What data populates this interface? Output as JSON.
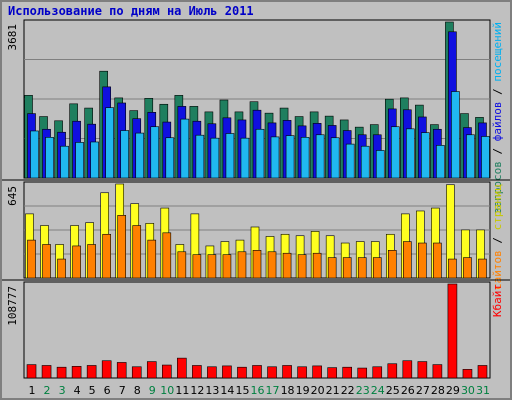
{
  "title": "Использование по дням на Июль 2011",
  "colors": {
    "hits": "#1f7f5f",
    "files": "#1010e0",
    "sites": "#ff8000",
    "pages": "#ffff20",
    "visits_label": "#00b0f0",
    "visits_bar": "#20b8f0",
    "kbytes": "#ff0000",
    "weekend_tick": "#008040",
    "weekday_tick": "#000000",
    "separator": "#000000"
  },
  "chart_data": [
    {
      "type": "bar",
      "panel": "top",
      "y_max_label": "3681",
      "ylim": [
        0,
        3681
      ],
      "grid": true,
      "right_labels": [
        {
          "text": "запросов",
          "color": "#1f7f5f"
        },
        {
          "text": " / ",
          "color": "#000000"
        },
        {
          "text": "файлов",
          "color": "#1010e0"
        },
        {
          "text": " / ",
          "color": "#000000"
        },
        {
          "text": "посещений",
          "color": "#00b0f0"
        }
      ],
      "categories": [
        "1",
        "2",
        "3",
        "4",
        "5",
        "6",
        "7",
        "8",
        "9",
        "10",
        "11",
        "12",
        "13",
        "14",
        "15",
        "16",
        "17",
        "18",
        "19",
        "20",
        "21",
        "22",
        "23",
        "24",
        "25",
        "26",
        "27",
        "28",
        "29",
        "30",
        "31"
      ],
      "series": [
        {
          "name": "запросов",
          "color": "#1f7f5f",
          "values": [
            1950,
            1450,
            1350,
            1750,
            1650,
            2520,
            1890,
            1590,
            1880,
            1740,
            1950,
            1690,
            1560,
            1840,
            1560,
            1800,
            1530,
            1650,
            1450,
            1560,
            1460,
            1370,
            1200,
            1260,
            1860,
            1890,
            1720,
            1260,
            3681,
            1520,
            1430
          ]
        },
        {
          "name": "файлов",
          "color": "#1010e0",
          "values": [
            1520,
            1150,
            1080,
            1340,
            1270,
            2150,
            1770,
            1400,
            1550,
            1320,
            1690,
            1340,
            1280,
            1420,
            1370,
            1600,
            1300,
            1360,
            1230,
            1290,
            1240,
            1120,
            1020,
            1020,
            1630,
            1610,
            1440,
            1150,
            3450,
            1190,
            1300
          ]
        },
        {
          "name": "посещений",
          "color": "#20b8f0",
          "values": [
            1110,
            960,
            750,
            840,
            850,
            1660,
            1120,
            1060,
            1210,
            950,
            1390,
            1010,
            940,
            1050,
            940,
            1150,
            970,
            1000,
            960,
            1020,
            950,
            800,
            750,
            650,
            1210,
            1160,
            1070,
            770,
            2040,
            1020,
            980
          ]
        }
      ]
    },
    {
      "type": "bar",
      "panel": "middle",
      "y_max_label": "645",
      "ylim": [
        0,
        645
      ],
      "grid": true,
      "right_labels": [
        {
          "text": "сайтов",
          "color": "#ff8000"
        },
        {
          "text": " / ",
          "color": "#000000"
        },
        {
          "text": "страниц",
          "color": "#c8c800"
        }
      ],
      "categories": [
        "1",
        "2",
        "3",
        "4",
        "5",
        "6",
        "7",
        "8",
        "9",
        "10",
        "11",
        "12",
        "13",
        "14",
        "15",
        "16",
        "17",
        "18",
        "19",
        "20",
        "21",
        "22",
        "23",
        "24",
        "25",
        "26",
        "27",
        "28",
        "29",
        "30",
        "31"
      ],
      "series": [
        {
          "name": "страниц",
          "color": "#ffff20",
          "values": [
            440,
            360,
            230,
            360,
            380,
            585,
            645,
            510,
            375,
            480,
            230,
            440,
            220,
            250,
            260,
            350,
            285,
            300,
            290,
            320,
            290,
            240,
            250,
            250,
            300,
            440,
            460,
            480,
            640,
            330,
            330
          ]
        },
        {
          "name": "сайтов",
          "color": "#ff8000",
          "values": [
            260,
            230,
            130,
            220,
            230,
            300,
            430,
            360,
            260,
            310,
            180,
            160,
            160,
            160,
            180,
            190,
            180,
            170,
            160,
            170,
            140,
            140,
            140,
            140,
            190,
            250,
            240,
            240,
            130,
            140,
            130
          ]
        }
      ]
    },
    {
      "type": "bar",
      "panel": "bottom",
      "y_max_label": "108777",
      "ylim": [
        0,
        108777
      ],
      "grid": false,
      "right_labels": [
        {
          "text": "Кбайт",
          "color": "#ff0000"
        }
      ],
      "categories": [
        "1",
        "2",
        "3",
        "4",
        "5",
        "6",
        "7",
        "8",
        "9",
        "10",
        "11",
        "12",
        "13",
        "14",
        "15",
        "16",
        "17",
        "18",
        "19",
        "20",
        "21",
        "22",
        "23",
        "24",
        "25",
        "26",
        "27",
        "28",
        "29",
        "30",
        "31"
      ],
      "series": [
        {
          "name": "Кбайт",
          "color": "#ff0000",
          "values": [
            15500,
            14500,
            12500,
            13500,
            14500,
            20000,
            18000,
            13000,
            19000,
            15000,
            23000,
            14500,
            13000,
            14000,
            12500,
            14500,
            13000,
            14500,
            13000,
            14000,
            12000,
            12500,
            11500,
            13000,
            16500,
            20000,
            19000,
            15500,
            108777,
            10000,
            14500
          ]
        }
      ]
    }
  ],
  "x_ticks": [
    {
      "label": "1",
      "weekend": false
    },
    {
      "label": "2",
      "weekend": true
    },
    {
      "label": "3",
      "weekend": true
    },
    {
      "label": "4",
      "weekend": false
    },
    {
      "label": "5",
      "weekend": false
    },
    {
      "label": "6",
      "weekend": false
    },
    {
      "label": "7",
      "weekend": false
    },
    {
      "label": "8",
      "weekend": false
    },
    {
      "label": "9",
      "weekend": true
    },
    {
      "label": "10",
      "weekend": true
    },
    {
      "label": "11",
      "weekend": false
    },
    {
      "label": "12",
      "weekend": false
    },
    {
      "label": "13",
      "weekend": false
    },
    {
      "label": "14",
      "weekend": false
    },
    {
      "label": "15",
      "weekend": false
    },
    {
      "label": "16",
      "weekend": true
    },
    {
      "label": "17",
      "weekend": true
    },
    {
      "label": "18",
      "weekend": false
    },
    {
      "label": "19",
      "weekend": false
    },
    {
      "label": "20",
      "weekend": false
    },
    {
      "label": "21",
      "weekend": false
    },
    {
      "label": "22",
      "weekend": false
    },
    {
      "label": "23",
      "weekend": true
    },
    {
      "label": "24",
      "weekend": true
    },
    {
      "label": "25",
      "weekend": false
    },
    {
      "label": "26",
      "weekend": false
    },
    {
      "label": "27",
      "weekend": false
    },
    {
      "label": "28",
      "weekend": false
    },
    {
      "label": "29",
      "weekend": false
    },
    {
      "label": "30",
      "weekend": true
    },
    {
      "label": "31",
      "weekend": true
    }
  ]
}
